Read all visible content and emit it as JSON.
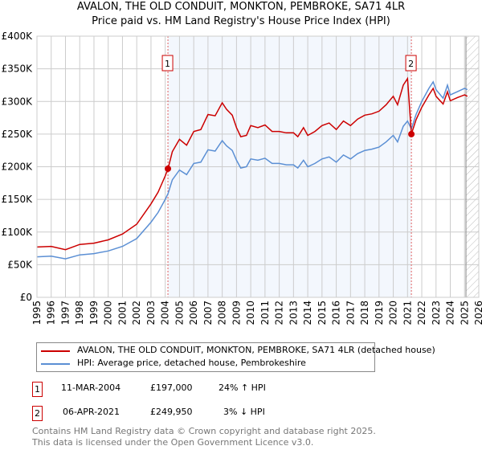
{
  "chart_data": {
    "type": "line",
    "title": "AVALON, THE OLD CONDUIT, MONKTON, PEMBROKE, SA71 4LR",
    "subtitle": "Price paid vs. HM Land Registry's House Price Index (HPI)",
    "xlim": [
      1995,
      2026
    ],
    "ylim": [
      0,
      400000
    ],
    "x_ticks": [
      "1995",
      "1996",
      "1997",
      "1998",
      "1999",
      "2000",
      "2001",
      "2002",
      "2003",
      "2004",
      "2005",
      "2006",
      "2007",
      "2008",
      "2009",
      "2010",
      "2011",
      "2012",
      "2013",
      "2014",
      "2015",
      "2016",
      "2017",
      "2018",
      "2019",
      "2020",
      "2021",
      "2022",
      "2023",
      "2024",
      "2025",
      "2026"
    ],
    "y_ticks": [
      {
        "v": 0,
        "label": "£0"
      },
      {
        "v": 50000,
        "label": "£50K"
      },
      {
        "v": 100000,
        "label": "£100K"
      },
      {
        "v": 150000,
        "label": "£150K"
      },
      {
        "v": 200000,
        "label": "£200K"
      },
      {
        "v": 250000,
        "label": "£250K"
      },
      {
        "v": 300000,
        "label": "£300K"
      },
      {
        "v": 350000,
        "label": "£350K"
      },
      {
        "v": 400000,
        "label": "£400K"
      }
    ],
    "x": [
      1995,
      1996,
      1997,
      1998,
      1999,
      2000,
      2001,
      2002,
      2003,
      2003.5,
      2004,
      2004.2,
      2004.5,
      2005,
      2005.5,
      2006,
      2006.5,
      2007,
      2007.5,
      2008,
      2008.3,
      2008.7,
      2009,
      2009.3,
      2009.7,
      2010,
      2010.5,
      2011,
      2011.5,
      2012,
      2012.5,
      2013,
      2013.3,
      2013.7,
      2014,
      2014.5,
      2015,
      2015.5,
      2016,
      2016.5,
      2017,
      2017.5,
      2018,
      2018.5,
      2019,
      2019.5,
      2020,
      2020.3,
      2020.7,
      2021,
      2021.27,
      2021.6,
      2022,
      2022.5,
      2022.8,
      2023,
      2023.5,
      2023.8,
      2024,
      2024.5,
      2025,
      2025.2
    ],
    "series": [
      {
        "name": "AVALON, THE OLD CONDUIT, MONKTON, PEMBROKE, SA71 4LR (detached house)",
        "color": "#cc0000",
        "values": [
          77,
          78,
          73,
          81,
          83,
          88,
          97,
          112,
          143,
          161,
          186,
          197,
          223,
          242,
          233,
          254,
          257,
          280,
          278,
          298,
          288,
          279,
          260,
          246,
          248,
          263,
          260,
          264,
          254,
          254,
          252,
          252,
          246,
          260,
          248,
          254,
          263,
          267,
          257,
          270,
          263,
          273,
          279,
          281,
          285,
          295,
          308,
          295,
          325,
          335,
          250,
          272,
          291,
          310,
          320,
          308,
          296,
          315,
          301,
          306,
          310,
          308
        ]
      },
      {
        "name": "HPI: Average price, detached house, Pembrokeshire",
        "color": "#5b8fd4",
        "values": [
          62,
          63,
          59,
          65,
          67,
          71,
          78,
          90,
          115,
          130,
          150,
          159,
          180,
          195,
          188,
          205,
          207,
          226,
          224,
          240,
          232,
          225,
          210,
          198,
          200,
          212,
          210,
          213,
          205,
          205,
          203,
          203,
          198,
          210,
          200,
          205,
          212,
          215,
          207,
          218,
          212,
          220,
          225,
          227,
          230,
          238,
          248,
          238,
          262,
          270,
          258,
          280,
          300,
          320,
          330,
          318,
          305,
          325,
          310,
          315,
          320,
          318
        ]
      }
    ],
    "value_units": "thousands GBP",
    "shaded_range": [
      2004.19,
      2021.27
    ],
    "hatched_from": 2025.1,
    "markers": [
      {
        "label": "1",
        "x": 2004.19,
        "y": 197
      },
      {
        "label": "2",
        "x": 2021.27,
        "y": 249.95
      }
    ],
    "legend_position": "bottom"
  },
  "sales": [
    {
      "num": "1",
      "date": "11-MAR-2004",
      "price": "£197,000",
      "hpi": "24% ↑ HPI"
    },
    {
      "num": "2",
      "date": "06-APR-2021",
      "price": "£249,950",
      "hpi": "3% ↓ HPI"
    }
  ],
  "footer": [
    "Contains HM Land Registry data © Crown copyright and database right 2025.",
    "This data is licensed under the Open Government Licence v3.0."
  ]
}
